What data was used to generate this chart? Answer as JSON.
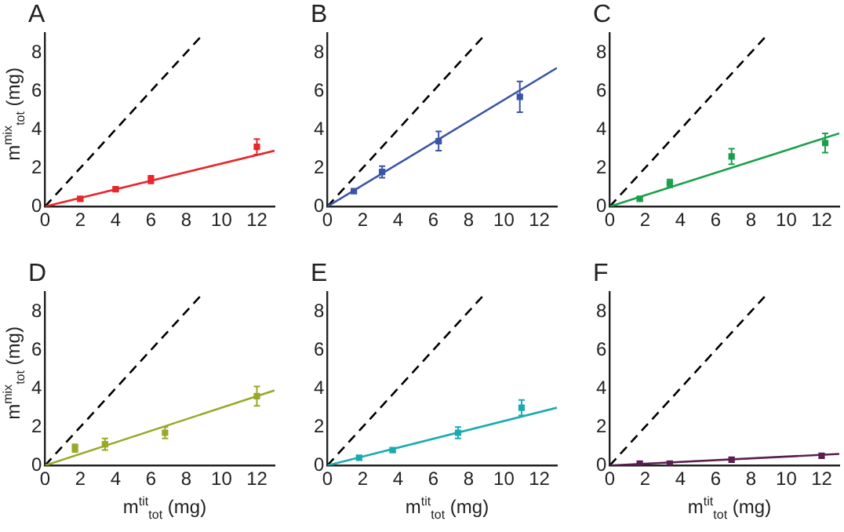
{
  "chart_data": [
    {
      "type": "scatter",
      "title": "A",
      "ylabel": "m$^{mix}$$_{tot}$ (mg)",
      "xlim": [
        0,
        13
      ],
      "xticks": [
        0,
        2,
        4,
        6,
        8,
        10,
        12
      ],
      "ylim": [
        0,
        9
      ],
      "yticks": [
        0,
        2,
        4,
        6,
        8
      ],
      "series": [
        {
          "type": "scatter",
          "marker": "square",
          "color": "#e8262b",
          "x": [
            2,
            4,
            6,
            12
          ],
          "values": [
            0.4,
            0.9,
            1.4,
            3.1
          ],
          "errors": [
            0.1,
            0.1,
            0.2,
            0.4
          ]
        },
        {
          "type": "line",
          "marker": "none",
          "color": "#e8262b",
          "x": [
            0,
            13
          ],
          "values": [
            0,
            2.9
          ],
          "line_style": "solid"
        },
        {
          "type": "line",
          "marker": "none",
          "color": "#000000",
          "x": [
            0,
            9
          ],
          "values": [
            0,
            9
          ],
          "line_style": "dashed"
        }
      ]
    },
    {
      "type": "scatter",
      "title": "B",
      "xlim": [
        0,
        13
      ],
      "xticks": [
        0,
        2,
        4,
        6,
        8,
        10,
        12
      ],
      "ylim": [
        0,
        9
      ],
      "yticks": [
        0,
        2,
        4,
        6,
        8
      ],
      "series": [
        {
          "type": "scatter",
          "marker": "square",
          "color": "#3a55a4",
          "x": [
            1.5,
            3.1,
            6.3,
            10.9
          ],
          "values": [
            0.8,
            1.8,
            3.4,
            5.7
          ],
          "errors": [
            0.1,
            0.3,
            0.5,
            0.8
          ]
        },
        {
          "type": "line",
          "marker": "none",
          "color": "#3a55a4",
          "x": [
            0,
            13
          ],
          "values": [
            0,
            7.2
          ],
          "line_style": "solid"
        },
        {
          "type": "line",
          "marker": "none",
          "color": "#000000",
          "x": [
            0,
            9
          ],
          "values": [
            0,
            9
          ],
          "line_style": "dashed"
        }
      ]
    },
    {
      "type": "scatter",
      "title": "C",
      "xlim": [
        0,
        13
      ],
      "xticks": [
        0,
        2,
        4,
        6,
        8,
        10,
        12
      ],
      "ylim": [
        0,
        9
      ],
      "yticks": [
        0,
        2,
        4,
        6,
        8
      ],
      "series": [
        {
          "type": "scatter",
          "marker": "square",
          "color": "#1aa04a",
          "x": [
            1.7,
            3.4,
            6.9,
            12.2
          ],
          "values": [
            0.4,
            1.2,
            2.6,
            3.3
          ],
          "errors": [
            0.1,
            0.2,
            0.4,
            0.5
          ]
        },
        {
          "type": "line",
          "marker": "none",
          "color": "#1aa04a",
          "x": [
            0,
            13
          ],
          "values": [
            0,
            3.8
          ],
          "line_style": "solid"
        },
        {
          "type": "line",
          "marker": "none",
          "color": "#000000",
          "x": [
            0,
            9
          ],
          "values": [
            0,
            9
          ],
          "line_style": "dashed"
        }
      ]
    },
    {
      "type": "scatter",
      "title": "D",
      "xlabel": "m$^{tit}$$_{tot}$ (mg)",
      "ylabel": "m$^{mix}$$_{tot}$ (mg)",
      "xlim": [
        0,
        13
      ],
      "xticks": [
        0,
        2,
        4,
        6,
        8,
        10,
        12
      ],
      "ylim": [
        0,
        9
      ],
      "yticks": [
        0,
        2,
        4,
        6,
        8
      ],
      "series": [
        {
          "type": "scatter",
          "marker": "square",
          "color": "#9aa82a",
          "x": [
            1.7,
            3.4,
            6.8,
            12
          ],
          "values": [
            0.9,
            1.1,
            1.7,
            3.6
          ],
          "errors": [
            0.2,
            0.3,
            0.3,
            0.5
          ]
        },
        {
          "type": "line",
          "marker": "none",
          "color": "#9aa82a",
          "x": [
            0,
            13
          ],
          "values": [
            0,
            3.9
          ],
          "line_style": "solid"
        },
        {
          "type": "line",
          "marker": "none",
          "color": "#000000",
          "x": [
            0,
            9
          ],
          "values": [
            0,
            9
          ],
          "line_style": "dashed"
        }
      ]
    },
    {
      "type": "scatter",
      "title": "E",
      "xlabel": "m$^{tit}$$_{tot}$ (mg)",
      "xlim": [
        0,
        13
      ],
      "xticks": [
        0,
        2,
        4,
        6,
        8,
        10,
        12
      ],
      "ylim": [
        0,
        9
      ],
      "yticks": [
        0,
        2,
        4,
        6,
        8
      ],
      "series": [
        {
          "type": "scatter",
          "marker": "square",
          "color": "#1aabb0",
          "x": [
            1.8,
            3.7,
            7.4,
            11
          ],
          "values": [
            0.4,
            0.8,
            1.7,
            3.0
          ],
          "errors": [
            0.1,
            0.1,
            0.3,
            0.4
          ]
        },
        {
          "type": "line",
          "marker": "none",
          "color": "#1aabb0",
          "x": [
            0,
            13
          ],
          "values": [
            0,
            3.0
          ],
          "line_style": "solid"
        },
        {
          "type": "line",
          "marker": "none",
          "color": "#000000",
          "x": [
            0,
            9
          ],
          "values": [
            0,
            9
          ],
          "line_style": "dashed"
        }
      ]
    },
    {
      "type": "scatter",
      "title": "F",
      "xlabel": "m$^{tit}$$_{tot}$ (mg)",
      "xlim": [
        0,
        13
      ],
      "xticks": [
        0,
        2,
        4,
        6,
        8,
        10,
        12
      ],
      "ylim": [
        0,
        9
      ],
      "yticks": [
        0,
        2,
        4,
        6,
        8
      ],
      "series": [
        {
          "type": "scatter",
          "marker": "square",
          "color": "#5a1f4f",
          "x": [
            1.7,
            3.4,
            6.9,
            12
          ],
          "values": [
            0.1,
            0.1,
            0.3,
            0.5
          ]
        },
        {
          "type": "line",
          "marker": "none",
          "color": "#5a1f4f",
          "x": [
            0,
            13
          ],
          "values": [
            0,
            0.6
          ],
          "line_style": "solid"
        },
        {
          "type": "line",
          "marker": "none",
          "color": "#000000",
          "x": [
            0,
            9
          ],
          "values": [
            0,
            9
          ],
          "line_style": "dashed"
        }
      ]
    }
  ]
}
